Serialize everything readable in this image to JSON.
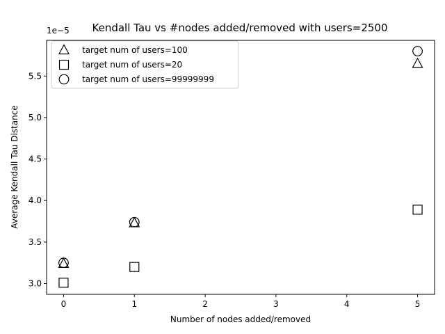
{
  "chart_data": {
    "type": "scatter",
    "title": "Kendall Tau vs #nodes added/removed with users=2500",
    "xlabel": "Number of nodes added/removed",
    "ylabel": "Average Kendall Tau Distance",
    "y_offset_label": "1e−5",
    "xlim": [
      -0.24,
      5.24
    ],
    "ylim": [
      2.87,
      5.93
    ],
    "x_ticks": [
      0,
      1,
      2,
      3,
      4,
      5
    ],
    "x_tick_labels": [
      "0",
      "1",
      "2",
      "3",
      "4",
      "5"
    ],
    "y_ticks": [
      3.0,
      3.5,
      4.0,
      4.5,
      5.0,
      5.5
    ],
    "y_tick_labels": [
      "3.0",
      "3.5",
      "4.0",
      "4.5",
      "5.0",
      "5.5"
    ],
    "grid": false,
    "legend_position": "top-left",
    "y_scale_multiplier": "1e-5",
    "series": [
      {
        "name": "target num of users=100",
        "marker": "triangle",
        "x": [
          0,
          1,
          5
        ],
        "y": [
          3.24,
          3.73,
          5.65
        ]
      },
      {
        "name": "target num of users=20",
        "marker": "square",
        "x": [
          0,
          1,
          5
        ],
        "y": [
          3.01,
          3.2,
          3.89
        ]
      },
      {
        "name": "target num of users=99999999",
        "marker": "circle",
        "x": [
          0,
          1,
          5
        ],
        "y": [
          3.25,
          3.74,
          5.8
        ]
      }
    ]
  }
}
